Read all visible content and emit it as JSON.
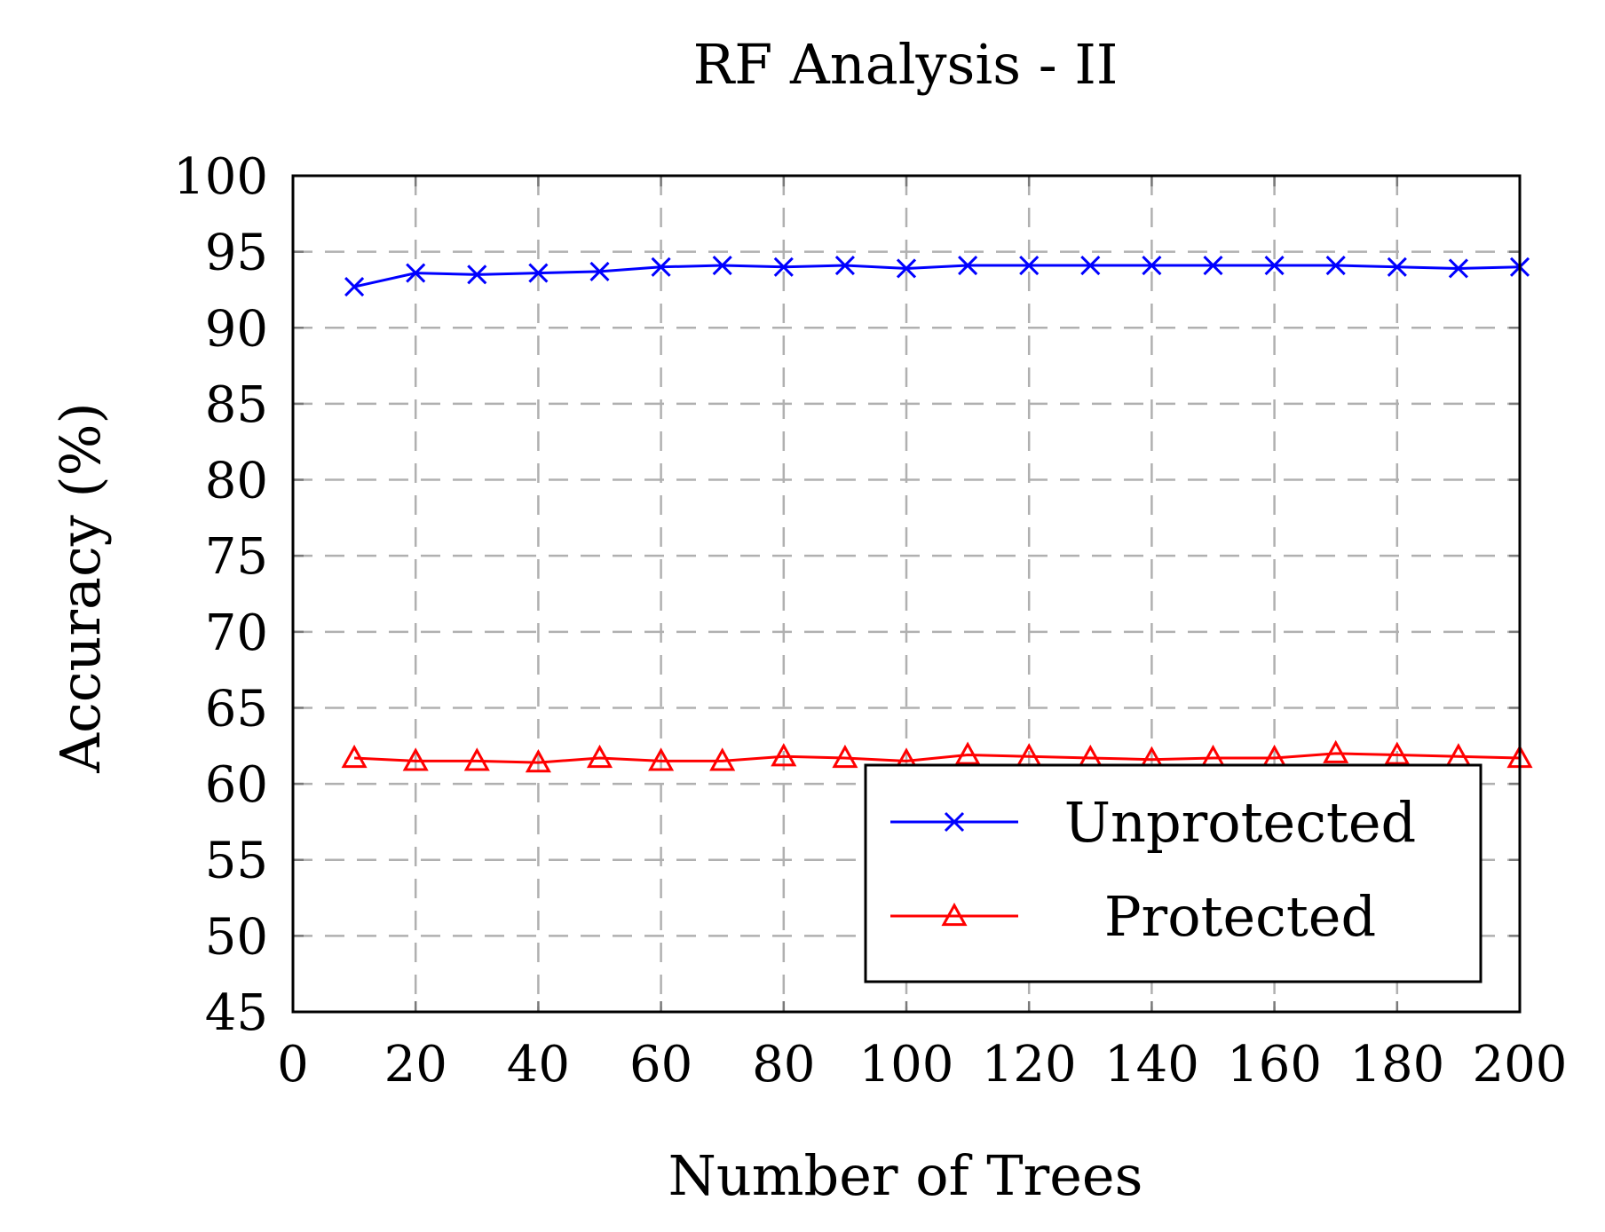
{
  "chart_data": {
    "type": "line",
    "title": "RF Analysis - II",
    "xlabel": "Number of Trees",
    "ylabel": "Accuracy (%)",
    "xlim": [
      0,
      200
    ],
    "ylim": [
      45,
      100
    ],
    "xticks": [
      "0",
      "20",
      "40",
      "60",
      "80",
      "100",
      "120",
      "140",
      "160",
      "180",
      "200"
    ],
    "yticks": [
      "45",
      "50",
      "55",
      "60",
      "65",
      "70",
      "75",
      "80",
      "85",
      "90",
      "95",
      "100"
    ],
    "xtick_values": [
      0,
      20,
      40,
      60,
      80,
      100,
      120,
      140,
      160,
      180,
      200
    ],
    "ytick_values": [
      45,
      50,
      55,
      60,
      65,
      70,
      75,
      80,
      85,
      90,
      95,
      100
    ],
    "grid": true,
    "legend_position": "bottom-right",
    "x": [
      10,
      20,
      30,
      40,
      50,
      60,
      70,
      80,
      90,
      100,
      110,
      120,
      130,
      140,
      150,
      160,
      170,
      180,
      190,
      200
    ],
    "series": [
      {
        "name": "Unprotected",
        "color": "#0000ff",
        "marker": "x",
        "values": [
          92.7,
          93.6,
          93.5,
          93.6,
          93.7,
          94.0,
          94.1,
          94.0,
          94.1,
          93.9,
          94.1,
          94.1,
          94.1,
          94.1,
          94.1,
          94.1,
          94.1,
          94.0,
          93.9,
          94.0
        ]
      },
      {
        "name": "Protected",
        "color": "#ff0000",
        "marker": "triangle",
        "values": [
          61.7,
          61.5,
          61.5,
          61.4,
          61.7,
          61.5,
          61.5,
          61.8,
          61.7,
          61.5,
          61.9,
          61.8,
          61.7,
          61.6,
          61.7,
          61.7,
          62.0,
          61.9,
          61.8,
          61.7
        ]
      }
    ]
  }
}
